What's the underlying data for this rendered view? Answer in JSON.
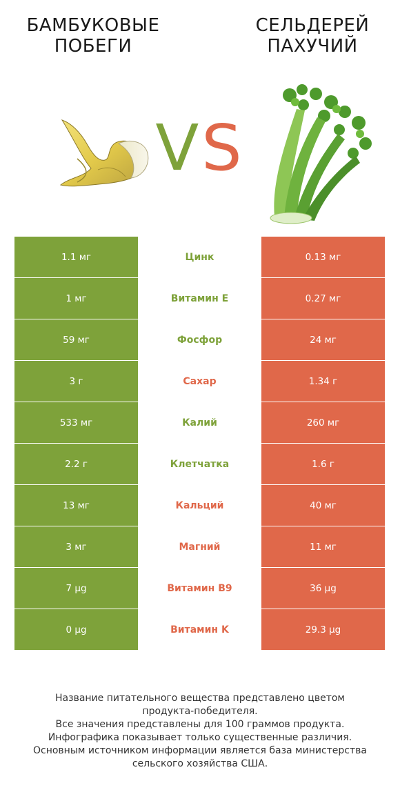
{
  "left_food": {
    "title_line1": "БАМБУКОВЫЕ",
    "title_line2": "ПОБЕГИ",
    "color": "#7ea23a"
  },
  "right_food": {
    "title_line1": "СЕЛЬДЕРЕЙ",
    "title_line2": "ПАХУЧИЙ",
    "color": "#e0684a"
  },
  "vs": {
    "v": "V",
    "s": "S"
  },
  "rows": [
    {
      "left": "1.1 мг",
      "nutrient": "Цинк",
      "right": "0.13 мг",
      "winner": "left"
    },
    {
      "left": "1 мг",
      "nutrient": "Витамин E",
      "right": "0.27 мг",
      "winner": "left"
    },
    {
      "left": "59 мг",
      "nutrient": "Фосфор",
      "right": "24 мг",
      "winner": "left"
    },
    {
      "left": "3 г",
      "nutrient": "Сахар",
      "right": "1.34 г",
      "winner": "right"
    },
    {
      "left": "533 мг",
      "nutrient": "Калий",
      "right": "260 мг",
      "winner": "left"
    },
    {
      "left": "2.2 г",
      "nutrient": "Клетчатка",
      "right": "1.6 г",
      "winner": "left"
    },
    {
      "left": "13 мг",
      "nutrient": "Кальций",
      "right": "40 мг",
      "winner": "right"
    },
    {
      "left": "3 мг",
      "nutrient": "Магний",
      "right": "11 мг",
      "winner": "right"
    },
    {
      "left": "7 µg",
      "nutrient": "Витамин B9",
      "right": "36 µg",
      "winner": "right"
    },
    {
      "left": "0 µg",
      "nutrient": "Витамин K",
      "right": "29.3 µg",
      "winner": "right"
    }
  ],
  "footer": {
    "line1": "Название питательного вещества представлено цветом",
    "line2": "продукта-победителя.",
    "line3": "Все значения представлены для 100 граммов продукта.",
    "line4": "Инфографика показывает только существенные различия.",
    "line5": "Основным источником информации является база министерства",
    "line6": "сельского хозяйства США."
  }
}
